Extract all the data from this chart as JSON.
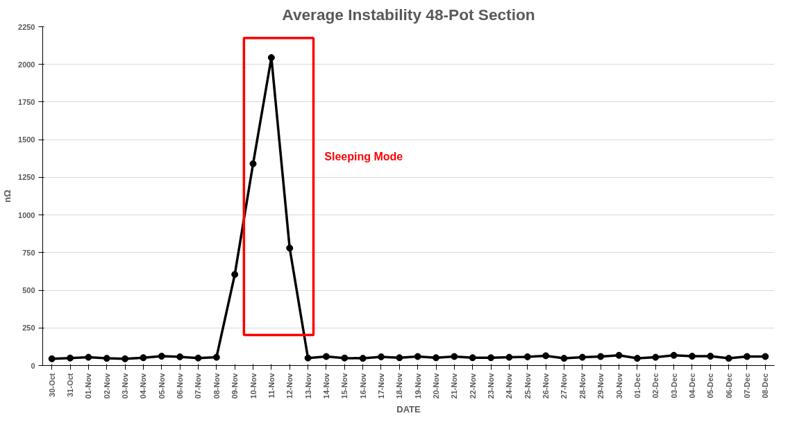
{
  "chart_data": {
    "type": "line",
    "title": "Average Instability 48-Pot Section",
    "xlabel": "DATE",
    "ylabel": "nΩ",
    "categories": [
      "30-Oct",
      "31-Oct",
      "01-Nov",
      "02-Nov",
      "03-Nov",
      "04-Nov",
      "05-Nov",
      "06-Nov",
      "07-Nov",
      "08-Nov",
      "09-Nov",
      "10-Nov",
      "11-Nov",
      "12-Nov",
      "13-Nov",
      "14-Nov",
      "15-Nov",
      "16-Nov",
      "17-Nov",
      "18-Nov",
      "19-Nov",
      "20-Nov",
      "21-Nov",
      "22-Nov",
      "23-Nov",
      "24-Nov",
      "25-Nov",
      "26-Nov",
      "27-Nov",
      "28-Nov",
      "29-Nov",
      "30-Nov",
      "01-Dec",
      "02-Dec",
      "03-Dec",
      "04-Dec",
      "05-Dec",
      "06-Dec",
      "07-Dec",
      "08-Dec"
    ],
    "series": [
      {
        "color": "#000000",
        "values": [
          45,
          50,
          55,
          48,
          45,
          52,
          62,
          58,
          50,
          55,
          605,
          1340,
          2045,
          780,
          50,
          60,
          50,
          48,
          58,
          52,
          60,
          52,
          60,
          52,
          52,
          55,
          58,
          65,
          48,
          55,
          60,
          68,
          48,
          55,
          68,
          62,
          62,
          48,
          60,
          60
        ]
      }
    ],
    "ylim": [
      0,
      2250
    ],
    "yticks": [
      0,
      250,
      500,
      750,
      1000,
      1250,
      1500,
      1750,
      2000,
      2250
    ],
    "grid": "y",
    "marker": "circle",
    "line_style": "solid",
    "annotations": [
      "Sleeping Mode"
    ]
  }
}
